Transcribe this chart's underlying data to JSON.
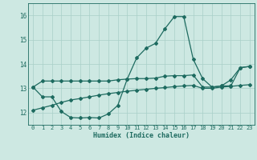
{
  "xlabel": "Humidex (Indice chaleur)",
  "bg_color": "#cde8e2",
  "grid_color": "#a8cfc8",
  "line_color": "#1e6b60",
  "xlim": [
    -0.5,
    23.5
  ],
  "ylim": [
    11.5,
    16.5
  ],
  "yticks": [
    12,
    13,
    14,
    15,
    16
  ],
  "xticks": [
    0,
    1,
    2,
    3,
    4,
    5,
    6,
    7,
    8,
    9,
    10,
    11,
    12,
    13,
    14,
    15,
    16,
    17,
    18,
    19,
    20,
    21,
    22,
    23
  ],
  "line1_x": [
    0,
    1,
    2,
    3,
    4,
    5,
    6,
    7,
    8,
    9,
    10,
    11,
    12,
    13,
    14,
    15,
    16,
    17,
    18,
    19,
    20,
    21,
    22,
    23
  ],
  "line1_y": [
    13.05,
    13.3,
    13.3,
    13.3,
    13.3,
    13.3,
    13.3,
    13.3,
    13.3,
    13.35,
    13.38,
    13.4,
    13.4,
    13.42,
    13.5,
    13.52,
    13.52,
    13.55,
    13.05,
    13.05,
    13.1,
    13.1,
    13.85,
    13.9
  ],
  "line2_x": [
    0,
    1,
    2,
    3,
    4,
    5,
    6,
    7,
    8,
    9,
    10,
    11,
    12,
    13,
    14,
    15,
    16,
    17,
    18,
    19,
    20,
    21,
    22,
    23
  ],
  "line2_y": [
    13.05,
    12.65,
    12.65,
    12.05,
    11.8,
    11.78,
    11.8,
    11.78,
    11.95,
    12.3,
    13.38,
    14.25,
    14.65,
    14.85,
    15.45,
    15.95,
    15.95,
    14.2,
    13.4,
    13.05,
    13.1,
    13.35,
    13.85,
    13.9
  ],
  "line3_x": [
    0,
    1,
    2,
    3,
    4,
    5,
    6,
    7,
    8,
    9,
    10,
    11,
    12,
    13,
    14,
    15,
    16,
    17,
    18,
    19,
    20,
    21,
    22,
    23
  ],
  "line3_y": [
    12.1,
    12.2,
    12.3,
    12.42,
    12.52,
    12.58,
    12.65,
    12.72,
    12.78,
    12.83,
    12.88,
    12.92,
    12.96,
    13.0,
    13.03,
    13.07,
    13.1,
    13.12,
    13.0,
    13.0,
    13.05,
    13.08,
    13.12,
    13.15
  ]
}
